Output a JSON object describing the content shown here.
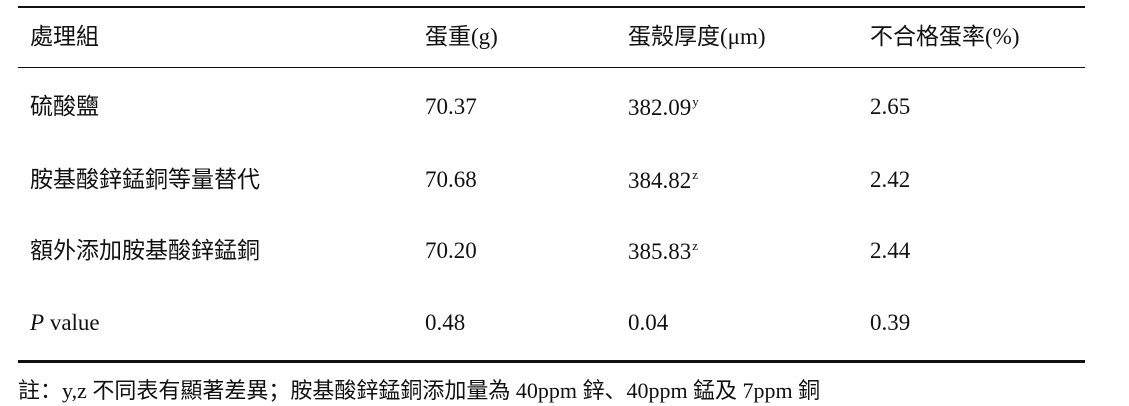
{
  "table": {
    "header": [
      "處理組",
      "蛋重(g)",
      "蛋殼厚度(μm)",
      "不合格蛋率(%)"
    ],
    "rows": [
      {
        "treatment": "硫酸鹽",
        "egg_weight": "70.37",
        "shell_thickness": "382.09",
        "shell_sup": "y",
        "defect_rate": "2.65"
      },
      {
        "treatment": "胺基酸鋅錳銅等量替代",
        "egg_weight": "70.68",
        "shell_thickness": "384.82",
        "shell_sup": "z",
        "defect_rate": "2.42"
      },
      {
        "treatment": "額外添加胺基酸鋅錳銅",
        "egg_weight": "70.20",
        "shell_thickness": "385.83",
        "shell_sup": "z",
        "defect_rate": "2.44"
      },
      {
        "treatment_italic": "P",
        "treatment": "value",
        "egg_weight": "0.48",
        "shell_thickness": "0.04",
        "defect_rate": "0.39"
      }
    ],
    "note": "註：y,z 不同表有顯著差異；胺基酸鋅錳銅添加量為 40ppm 鋅、40ppm 錳及 7ppm 銅"
  }
}
